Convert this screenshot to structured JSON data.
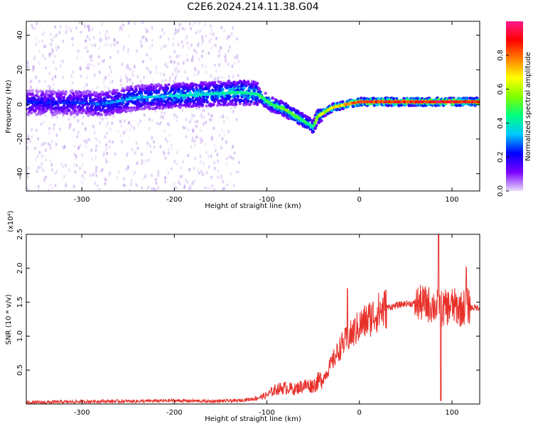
{
  "title": "C2E6.2024.214.11.38.G04",
  "chart_data": [
    {
      "type": "heatmap",
      "xlabel": "Height of straight line (km)",
      "ylabel": "Frequency (Hz)",
      "xlim": [
        -360,
        130
      ],
      "ylim": [
        -50,
        48
      ],
      "x_ticks": [
        -300,
        -200,
        -100,
        0,
        100
      ],
      "y_ticks": [
        -40,
        -20,
        0,
        20,
        40
      ],
      "grid": false,
      "colorbar": {
        "label": "Normalized spectral amplitude",
        "range": [
          0,
          1
        ],
        "ticks": [
          "0.0",
          "0.2",
          "0.4",
          "0.6",
          "0.8"
        ],
        "colormap": [
          "#e8dcf8",
          "#7a00ff",
          "#0000ff",
          "#00c8ff",
          "#00ff80",
          "#80ff00",
          "#ffff00",
          "#ff8000",
          "#ff0000",
          "#ff1a8c"
        ]
      },
      "ridge": [
        {
          "x": -360,
          "freq": 1,
          "amp": 0.25
        },
        {
          "x": -300,
          "freq": 1,
          "amp": 0.25
        },
        {
          "x": -280,
          "freq": 0,
          "amp": 0.3
        },
        {
          "x": -240,
          "freq": 4,
          "amp": 0.35
        },
        {
          "x": -200,
          "freq": 5,
          "amp": 0.4
        },
        {
          "x": -160,
          "freq": 6,
          "amp": 0.4
        },
        {
          "x": -130,
          "freq": 7,
          "amp": 0.45
        },
        {
          "x": -110,
          "freq": 6,
          "amp": 0.45
        },
        {
          "x": -95,
          "freq": 0,
          "amp": 0.5
        },
        {
          "x": -80,
          "freq": -3,
          "amp": 0.55
        },
        {
          "x": -65,
          "freq": -8,
          "amp": 0.5
        },
        {
          "x": -50,
          "freq": -13,
          "amp": 0.45
        },
        {
          "x": -45,
          "freq": -7,
          "amp": 0.6
        },
        {
          "x": -30,
          "freq": -2,
          "amp": 0.7
        },
        {
          "x": -15,
          "freq": 0,
          "amp": 0.75
        },
        {
          "x": 0,
          "freq": 1.5,
          "amp": 0.9
        },
        {
          "x": 40,
          "freq": 1.5,
          "amp": 0.9
        },
        {
          "x": 80,
          "freq": 1.5,
          "amp": 0.95
        },
        {
          "x": 130,
          "freq": 1.5,
          "amp": 0.9
        }
      ]
    },
    {
      "type": "line",
      "xlabel": "Height of straight line (km)",
      "ylabel": "SNR (10 * v/v)",
      "y_scale_label": "(x10⁴)",
      "xlim": [
        -360,
        130
      ],
      "ylim": [
        0,
        2.5
      ],
      "x_ticks": [
        -300,
        -200,
        -100,
        0,
        100
      ],
      "y_ticks": [
        "0.5",
        "1.0",
        "1.5",
        "2.0",
        "2.5"
      ],
      "grid": false,
      "color": "#e8302a",
      "series": [
        {
          "x": [
            -360,
            -320,
            -280,
            -240,
            -200,
            -160,
            -130,
            -110,
            -100,
            -90,
            -80,
            -70,
            -60,
            -50,
            -40,
            -30,
            -20,
            -10,
            0,
            10,
            20,
            30,
            40,
            50,
            60,
            70,
            80,
            90,
            100,
            110,
            115,
            120,
            130
          ],
          "y": [
            0.01,
            0.02,
            0.03,
            0.03,
            0.04,
            0.03,
            0.04,
            0.08,
            0.12,
            0.2,
            0.22,
            0.2,
            0.25,
            0.25,
            0.35,
            0.6,
            0.85,
            1.0,
            1.15,
            1.25,
            1.35,
            1.42,
            1.45,
            1.48,
            1.48,
            1.48,
            1.45,
            1.4,
            1.45,
            1.4,
            1.45,
            1.42,
            1.42
          ]
        }
      ]
    }
  ]
}
